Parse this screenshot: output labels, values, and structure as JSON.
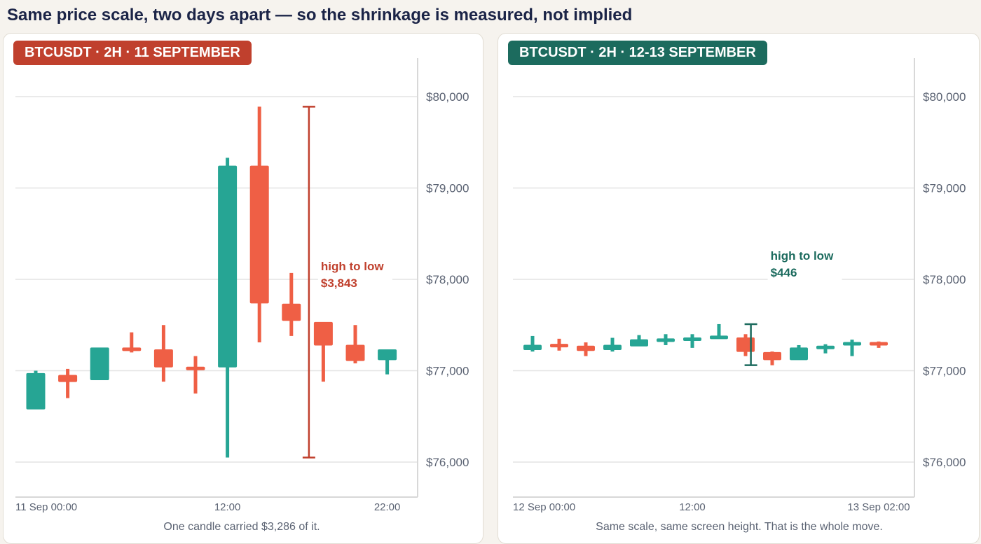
{
  "page_title": "Same price scale, two days apart — so the shrinkage is measured, not implied",
  "colors": {
    "up": "#26a594",
    "down": "#ef5f45",
    "grid": "#e3e3e3",
    "axis": "#d8d8d8",
    "left_accent": "#c0402d",
    "right_accent": "#1c6b5e"
  },
  "chart_data": [
    {
      "type": "candlestick",
      "badge": "BTCUSDT · 2H  ·  11 SEPTEMBER",
      "accent": "#c0402d",
      "ylim": [
        75600,
        80420
      ],
      "y_ticks": [
        76000,
        77000,
        78000,
        79000,
        80000
      ],
      "y_tick_labels": [
        "$76,000",
        "$77,000",
        "$78,000",
        "$79,000",
        "$80,000"
      ],
      "x_tick_labels": [
        {
          "index": 0,
          "label": "11 Sep 00:00",
          "anchor": "start"
        },
        {
          "index": 6,
          "label": "12:00",
          "anchor": "middle"
        },
        {
          "index": 11,
          "label": "22:00",
          "anchor": "middle"
        }
      ],
      "candles": [
        {
          "o": 76580,
          "h": 77000,
          "l": 76580,
          "c": 76970
        },
        {
          "o": 76950,
          "h": 77020,
          "l": 76700,
          "c": 76880
        },
        {
          "o": 76900,
          "h": 77250,
          "l": 76900,
          "c": 77250
        },
        {
          "o": 77250,
          "h": 77420,
          "l": 77200,
          "c": 77230
        },
        {
          "o": 77230,
          "h": 77500,
          "l": 76880,
          "c": 77040
        },
        {
          "o": 77040,
          "h": 77160,
          "l": 76750,
          "c": 77030
        },
        {
          "o": 77040,
          "h": 79330,
          "l": 76050,
          "c": 79240
        },
        {
          "o": 79240,
          "h": 79890,
          "l": 77310,
          "c": 77740
        },
        {
          "o": 77730,
          "h": 78070,
          "l": 77380,
          "c": 77550
        },
        {
          "o": 77530,
          "h": 77530,
          "l": 76880,
          "c": 77280
        },
        {
          "o": 77280,
          "h": 77500,
          "l": 77080,
          "c": 77110
        },
        {
          "o": 77120,
          "h": 77230,
          "l": 76960,
          "c": 77230
        }
      ],
      "range_bar": {
        "high": 79890,
        "low": 76050,
        "after_index": 8.55
      },
      "annotation": {
        "line1": "high to low",
        "line2": "$3,843"
      },
      "caption": "One candle carried $3,286 of it."
    },
    {
      "type": "candlestick",
      "badge": "BTCUSDT · 2H  ·  12-13 SEPTEMBER",
      "accent": "#1c6b5e",
      "ylim": [
        75600,
        80420
      ],
      "y_ticks": [
        76000,
        77000,
        78000,
        79000,
        80000
      ],
      "y_tick_labels": [
        "$76,000",
        "$77,000",
        "$78,000",
        "$79,000",
        "$80,000"
      ],
      "x_tick_labels": [
        {
          "index": 0,
          "label": "12 Sep 00:00",
          "anchor": "start"
        },
        {
          "index": 6,
          "label": "12:00",
          "anchor": "middle"
        },
        {
          "index": 13,
          "label": "13 Sep 02:00",
          "anchor": "middle"
        }
      ],
      "candles": [
        {
          "o": 77230,
          "h": 77380,
          "l": 77210,
          "c": 77280
        },
        {
          "o": 77290,
          "h": 77350,
          "l": 77220,
          "c": 77260
        },
        {
          "o": 77270,
          "h": 77310,
          "l": 77160,
          "c": 77220
        },
        {
          "o": 77230,
          "h": 77360,
          "l": 77210,
          "c": 77280
        },
        {
          "o": 77270,
          "h": 77390,
          "l": 77270,
          "c": 77340
        },
        {
          "o": 77340,
          "h": 77400,
          "l": 77280,
          "c": 77350
        },
        {
          "o": 77350,
          "h": 77400,
          "l": 77250,
          "c": 77360
        },
        {
          "o": 77370,
          "h": 77510,
          "l": 77360,
          "c": 77380
        },
        {
          "o": 77360,
          "h": 77400,
          "l": 77160,
          "c": 77210
        },
        {
          "o": 77200,
          "h": 77210,
          "l": 77060,
          "c": 77120
        },
        {
          "o": 77120,
          "h": 77280,
          "l": 77120,
          "c": 77250
        },
        {
          "o": 77260,
          "h": 77290,
          "l": 77190,
          "c": 77270
        },
        {
          "o": 77290,
          "h": 77340,
          "l": 77160,
          "c": 77310
        },
        {
          "o": 77310,
          "h": 77320,
          "l": 77250,
          "c": 77290
        }
      ],
      "range_bar": {
        "high": 77510,
        "low": 77060,
        "after_index": 8.2
      },
      "annotation": {
        "line1": "high to low",
        "line2": "$446"
      },
      "caption": "Same scale, same screen height. That is the whole move."
    }
  ]
}
